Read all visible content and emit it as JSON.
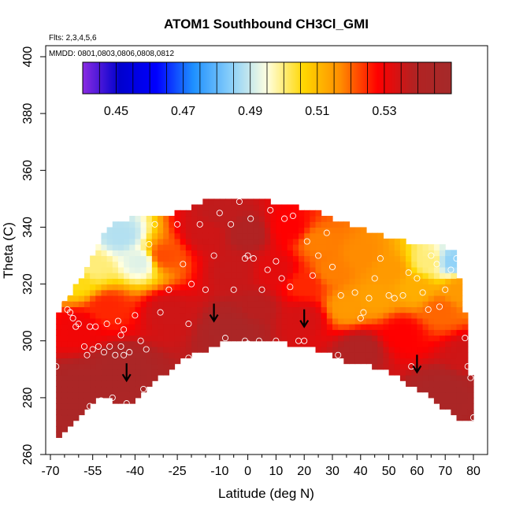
{
  "chart_data": {
    "type": "heatmap",
    "title": "ATOM1 Southbound CH3Cl_GMI",
    "flights_label": "Flts: 2,3,4,5,6",
    "dates_label": "MMDD: 0801,0803,0806,0808,0812",
    "xlabel": "Latitude (deg N)",
    "ylabel": "Theta (C)",
    "xlim": [
      -70,
      80
    ],
    "ylim": [
      260,
      400
    ],
    "x_ticks": [
      -70,
      -55,
      -40,
      -25,
      -10,
      0,
      10,
      20,
      30,
      40,
      50,
      60,
      70,
      80
    ],
    "x_tick_labels": [
      "-70",
      "-55",
      "-40",
      "-25",
      "-10",
      "0",
      "10",
      "20",
      "30",
      "40",
      "50",
      "60",
      "70",
      "80"
    ],
    "x_minor_ticks": [
      -65,
      -60,
      -50,
      -45,
      -35,
      -30,
      -20,
      -15,
      -5,
      5,
      15,
      25,
      35,
      45,
      55,
      65,
      75
    ],
    "y_ticks": [
      260,
      280,
      300,
      320,
      340,
      360,
      380,
      400
    ],
    "y_tick_labels": [
      "260",
      "280",
      "300",
      "320",
      "340",
      "360",
      "380",
      "400"
    ],
    "colorbar": {
      "range": [
        0.44,
        0.55
      ],
      "ticks": [
        0.45,
        0.47,
        0.49,
        0.51,
        0.53
      ],
      "tick_labels": [
        "0.45",
        "0.47",
        "0.49",
        "0.51",
        "0.53"
      ],
      "colors": [
        "#8a2be2",
        "#0000cd",
        "#0000ff",
        "#1e90ff",
        "#87cefa",
        "#ffffe0",
        "#ffd700",
        "#ff8c00",
        "#ff0000",
        "#b22222",
        "#a52a2a"
      ]
    },
    "surface_bottom_theta": [
      [
        -68,
        266
      ],
      [
        -65,
        268
      ],
      [
        -62,
        272
      ],
      [
        -58,
        276
      ],
      [
        -55,
        279
      ],
      [
        -50,
        280
      ],
      [
        -45,
        278
      ],
      [
        -42,
        278
      ],
      [
        -38,
        282
      ],
      [
        -30,
        288
      ],
      [
        -22,
        294
      ],
      [
        -15,
        297
      ],
      [
        -10,
        299
      ],
      [
        -5,
        299.5
      ],
      [
        0,
        299.5
      ],
      [
        5,
        300
      ],
      [
        10,
        299.5
      ],
      [
        15,
        299
      ],
      [
        20,
        298
      ],
      [
        25,
        297
      ],
      [
        30,
        295
      ],
      [
        35,
        293
      ],
      [
        40,
        292
      ],
      [
        45,
        291
      ],
      [
        50,
        289
      ],
      [
        55,
        286
      ],
      [
        60,
        283
      ],
      [
        65,
        280
      ],
      [
        70,
        276
      ],
      [
        75,
        273
      ],
      [
        79,
        272
      ]
    ],
    "surface_top_theta": [
      [
        -68,
        305
      ],
      [
        -66,
        313
      ],
      [
        -62,
        318
      ],
      [
        -58,
        323
      ],
      [
        -55,
        330
      ],
      [
        -52,
        337
      ],
      [
        -48,
        341
      ],
      [
        -42,
        343
      ],
      [
        -35,
        344
      ],
      [
        -30,
        344
      ],
      [
        -25,
        345
      ],
      [
        -20,
        347
      ],
      [
        -15,
        349
      ],
      [
        -10,
        350
      ],
      [
        -5,
        350
      ],
      [
        0,
        351
      ],
      [
        3,
        350
      ],
      [
        8,
        349
      ],
      [
        12,
        348
      ],
      [
        18,
        347
      ],
      [
        25,
        345
      ],
      [
        32,
        342
      ],
      [
        38,
        340
      ],
      [
        44,
        338
      ],
      [
        50,
        336
      ],
      [
        55,
        335
      ],
      [
        60,
        334
      ],
      [
        65,
        334
      ],
      [
        70,
        333
      ],
      [
        73,
        332
      ],
      [
        76,
        318
      ],
      [
        78,
        303
      ],
      [
        79,
        288
      ]
    ],
    "value_samples": [
      {
        "lat": -60,
        "theta": 282,
        "value": 0.545
      },
      {
        "lat": -45,
        "theta": 290,
        "value": 0.545
      },
      {
        "lat": -5,
        "theta": 304,
        "value": 0.545
      },
      {
        "lat": 40,
        "theta": 297,
        "value": 0.54
      },
      {
        "lat": 70,
        "theta": 282,
        "value": 0.545
      },
      {
        "lat": -60,
        "theta": 305,
        "value": 0.53
      },
      {
        "lat": -50,
        "theta": 312,
        "value": 0.525
      },
      {
        "lat": -60,
        "theta": 321,
        "value": 0.505
      },
      {
        "lat": -55,
        "theta": 326,
        "value": 0.5
      },
      {
        "lat": -45,
        "theta": 337,
        "value": 0.488
      },
      {
        "lat": -38,
        "theta": 328,
        "value": 0.492
      },
      {
        "lat": -30,
        "theta": 330,
        "value": 0.522
      },
      {
        "lat": -28,
        "theta": 310,
        "value": 0.535
      },
      {
        "lat": -15,
        "theta": 338,
        "value": 0.535
      },
      {
        "lat": -10,
        "theta": 345,
        "value": 0.537
      },
      {
        "lat": -5,
        "theta": 325,
        "value": 0.536
      },
      {
        "lat": 0,
        "theta": 338,
        "value": 0.54
      },
      {
        "lat": 3,
        "theta": 312,
        "value": 0.538
      },
      {
        "lat": 10,
        "theta": 325,
        "value": 0.532
      },
      {
        "lat": 15,
        "theta": 340,
        "value": 0.528
      },
      {
        "lat": 20,
        "theta": 320,
        "value": 0.525
      },
      {
        "lat": 20,
        "theta": 308,
        "value": 0.534
      },
      {
        "lat": 25,
        "theta": 335,
        "value": 0.518
      },
      {
        "lat": 30,
        "theta": 325,
        "value": 0.518
      },
      {
        "lat": 35,
        "theta": 312,
        "value": 0.515
      },
      {
        "lat": 40,
        "theta": 330,
        "value": 0.517
      },
      {
        "lat": 45,
        "theta": 315,
        "value": 0.514
      },
      {
        "lat": 50,
        "theta": 325,
        "value": 0.515
      },
      {
        "lat": 55,
        "theta": 303,
        "value": 0.528
      },
      {
        "lat": 60,
        "theta": 318,
        "value": 0.512
      },
      {
        "lat": 65,
        "theta": 328,
        "value": 0.5
      },
      {
        "lat": 68,
        "theta": 311,
        "value": 0.52
      },
      {
        "lat": 72,
        "theta": 328,
        "value": 0.485
      },
      {
        "lat": 75,
        "theta": 318,
        "value": 0.515
      },
      {
        "lat": 78,
        "theta": 295,
        "value": 0.535
      }
    ],
    "observations": [
      [
        -68,
        291
      ],
      [
        -67,
        314
      ],
      [
        -65,
        316
      ],
      [
        -64,
        311
      ],
      [
        -63,
        310
      ],
      [
        -62,
        308
      ],
      [
        -61,
        305
      ],
      [
        -60,
        306
      ],
      [
        -58,
        298
      ],
      [
        -57,
        295
      ],
      [
        -56,
        305
      ],
      [
        -56,
        277
      ],
      [
        -55,
        297
      ],
      [
        -54,
        305
      ],
      [
        -53,
        298
      ],
      [
        -52,
        279
      ],
      [
        -51,
        296
      ],
      [
        -50,
        306
      ],
      [
        -49,
        298
      ],
      [
        -48,
        280
      ],
      [
        -47,
        295
      ],
      [
        -46,
        307
      ],
      [
        -45,
        298
      ],
      [
        -45,
        302
      ],
      [
        -44,
        304
      ],
      [
        -44,
        295
      ],
      [
        -43,
        278
      ],
      [
        -42,
        296
      ],
      [
        -40,
        309
      ],
      [
        -38,
        300
      ],
      [
        -37,
        283
      ],
      [
        -36,
        297
      ],
      [
        -35,
        334
      ],
      [
        -33,
        341
      ],
      [
        -31,
        310
      ],
      [
        -30,
        286
      ],
      [
        -28,
        318
      ],
      [
        -25,
        341
      ],
      [
        -23,
        327
      ],
      [
        -21,
        306
      ],
      [
        -21,
        294
      ],
      [
        -20,
        320
      ],
      [
        -17,
        341
      ],
      [
        -15,
        318
      ],
      [
        -12,
        330
      ],
      [
        -10,
        345
      ],
      [
        -8,
        301
      ],
      [
        -6,
        341
      ],
      [
        -5,
        318
      ],
      [
        -3,
        349
      ],
      [
        -1,
        329
      ],
      [
        -1,
        300
      ],
      [
        0,
        330
      ],
      [
        0,
        299
      ],
      [
        1,
        343
      ],
      [
        2,
        329
      ],
      [
        4,
        300
      ],
      [
        5,
        318
      ],
      [
        7,
        325
      ],
      [
        8,
        346
      ],
      [
        10,
        328
      ],
      [
        10,
        300
      ],
      [
        12,
        322
      ],
      [
        13,
        343
      ],
      [
        15,
        319
      ],
      [
        16,
        344
      ],
      [
        18,
        300
      ],
      [
        20,
        300
      ],
      [
        21,
        335
      ],
      [
        23,
        323
      ],
      [
        25,
        330
      ],
      [
        28,
        338
      ],
      [
        30,
        326
      ],
      [
        32,
        295
      ],
      [
        33,
        316
      ],
      [
        35,
        344
      ],
      [
        38,
        317
      ],
      [
        40,
        308
      ],
      [
        41,
        310
      ],
      [
        43,
        315
      ],
      [
        45,
        322
      ],
      [
        47,
        329
      ],
      [
        50,
        316
      ],
      [
        52,
        315
      ],
      [
        55,
        316
      ],
      [
        57,
        324
      ],
      [
        58,
        291
      ],
      [
        60,
        322
      ],
      [
        62,
        317
      ],
      [
        64,
        311
      ],
      [
        65,
        330
      ],
      [
        67,
        327
      ],
      [
        68,
        312
      ],
      [
        70,
        318
      ],
      [
        72,
        325
      ],
      [
        74,
        329
      ],
      [
        77,
        301
      ],
      [
        78,
        291
      ],
      [
        79,
        287
      ],
      [
        80,
        273
      ]
    ],
    "arrows": [
      {
        "lat": -43,
        "theta": 286
      },
      {
        "lat": -12,
        "theta": 307
      },
      {
        "lat": 20,
        "theta": 305
      },
      {
        "lat": 60,
        "theta": 289
      }
    ]
  }
}
